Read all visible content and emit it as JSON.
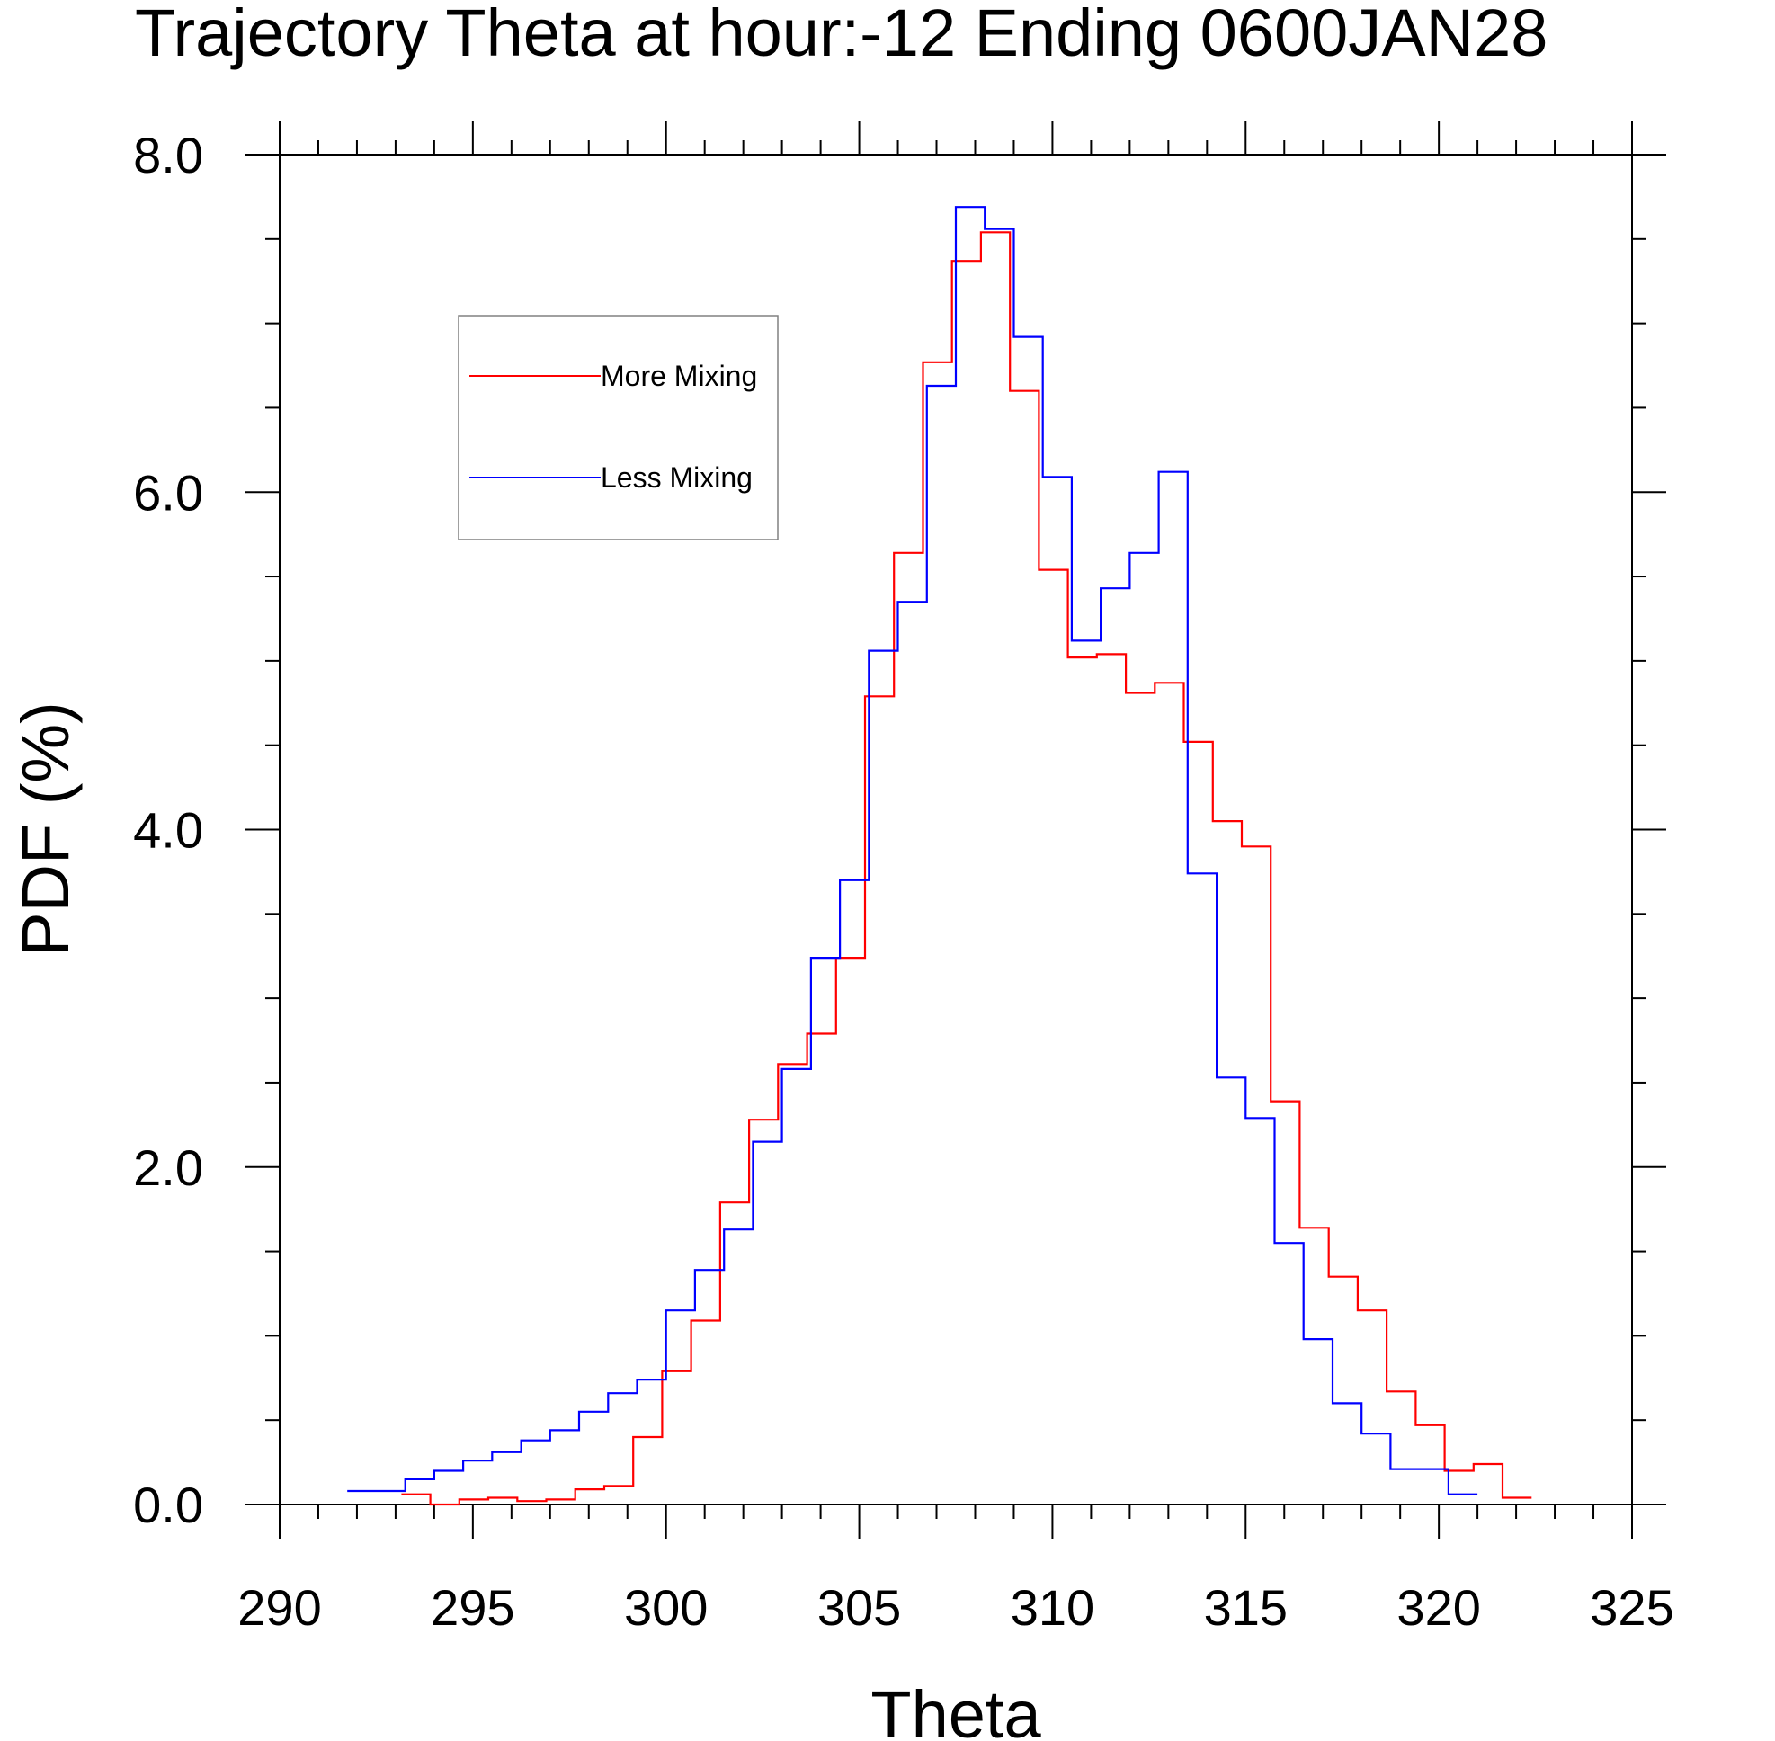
{
  "chart_data": {
    "type": "line",
    "style": "step-histogram",
    "title": "Trajectory Theta at hour:-12 Ending 0600JAN28",
    "xlabel": "Theta",
    "ylabel": "PDF (%)",
    "xlim": [
      290,
      325
    ],
    "ylim": [
      0,
      8
    ],
    "x_ticks": [
      "290",
      "295",
      "300",
      "305",
      "310",
      "315",
      "320",
      "325"
    ],
    "y_ticks": [
      "0.0",
      "2.0",
      "4.0",
      "6.0",
      "8.0"
    ],
    "x_minor_step": 1,
    "y_minor_step": 0.5,
    "grid": false,
    "legend_position": "top-left",
    "series": [
      {
        "name": "More Mixing",
        "color": "#ff0000",
        "bin_edges": [
          293.15,
          293.9,
          294.65,
          295.4,
          296.15,
          296.9,
          297.65,
          298.4,
          299.15,
          299.9,
          300.65,
          301.4,
          302.15,
          302.9,
          303.65,
          304.4,
          305.15,
          305.9,
          306.65,
          307.4,
          308.15,
          308.9,
          309.65,
          310.4,
          311.15,
          311.9,
          312.65,
          313.4,
          314.15,
          314.9,
          315.65,
          316.4,
          317.15,
          317.9,
          318.65,
          319.4,
          320.15,
          320.9,
          321.65,
          322.4
        ],
        "values": [
          0.06,
          0.0,
          0.03,
          0.04,
          0.02,
          0.03,
          0.09,
          0.11,
          0.4,
          0.79,
          1.09,
          1.79,
          2.28,
          2.61,
          2.79,
          3.24,
          4.79,
          5.64,
          6.77,
          7.37,
          7.54,
          6.6,
          5.54,
          5.02,
          5.04,
          4.81,
          4.87,
          4.52,
          4.05,
          3.9,
          2.39,
          1.64,
          1.35,
          1.15,
          0.67,
          0.47,
          0.2,
          0.24,
          0.04
        ]
      },
      {
        "name": "Less Mixing",
        "color": "#0000ff",
        "bin_edges": [
          291.75,
          293.25,
          294.0,
          294.75,
          295.5,
          296.25,
          297.0,
          297.75,
          298.5,
          299.25,
          300.0,
          300.75,
          301.5,
          302.25,
          303.0,
          303.75,
          304.5,
          305.25,
          306.0,
          306.75,
          307.5,
          308.25,
          309.0,
          309.75,
          310.5,
          311.25,
          312.0,
          312.75,
          313.5,
          314.25,
          315.0,
          315.75,
          316.5,
          317.25,
          318.0,
          318.75,
          319.5,
          320.25,
          321.0
        ],
        "values": [
          0.08,
          0.15,
          0.2,
          0.26,
          0.31,
          0.38,
          0.44,
          0.55,
          0.66,
          0.74,
          1.15,
          1.39,
          1.63,
          2.15,
          2.58,
          3.24,
          3.7,
          5.06,
          5.35,
          6.63,
          7.69,
          7.56,
          6.92,
          6.09,
          5.12,
          5.43,
          5.64,
          6.12,
          3.74,
          2.53,
          2.29,
          1.55,
          0.98,
          0.6,
          0.42,
          0.21,
          0.21,
          0.06
        ]
      }
    ]
  }
}
